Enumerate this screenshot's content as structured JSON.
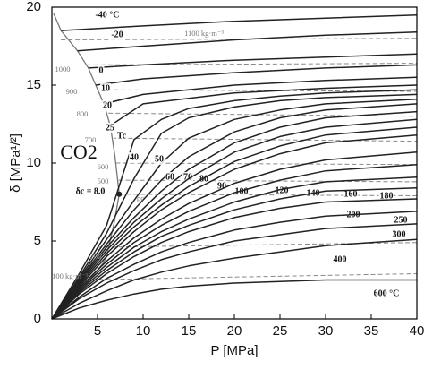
{
  "chart_data": {
    "type": "line",
    "xlabel": "P [MPa]",
    "ylabel": "δ [MPa¹/²]",
    "xlim": [
      0,
      40
    ],
    "ylim": [
      0,
      20
    ],
    "xticks": [
      5,
      10,
      15,
      20,
      25,
      30,
      35,
      40
    ],
    "yticks": [
      0,
      5,
      10,
      15,
      20
    ],
    "annotations": {
      "substance": "CO2",
      "critical": "δc = 8.0"
    },
    "critical_point": {
      "x": 7.38,
      "value": 8.0
    },
    "x": [
      0,
      3,
      6,
      9,
      12,
      15,
      20,
      25,
      30,
      40
    ],
    "saturation_curve": {
      "color": "#777777",
      "x": [
        0.2,
        1,
        2.8,
        4,
        4.8,
        5.7,
        6.4,
        6.9,
        7.38,
        6.8,
        5.9,
        3.6,
        1.7,
        0
      ],
      "values": [
        19.6,
        18.5,
        17.2,
        16.1,
        15.0,
        13.8,
        12.4,
        10.5,
        8.0,
        6.1,
        3.8,
        2.1,
        0.9,
        0
      ]
    },
    "series": [
      {
        "name": "-40 °C",
        "color": "#222222",
        "x": [
          1,
          10,
          20,
          30,
          40
        ],
        "values": [
          18.5,
          18.8,
          19.1,
          19.3,
          19.5
        ]
      },
      {
        "name": "-20",
        "color": "#222222",
        "x": [
          2.8,
          10,
          20,
          30,
          40
        ],
        "values": [
          17.2,
          17.5,
          17.9,
          18.2,
          18.4
        ]
      },
      {
        "name": "0",
        "color": "#222222",
        "x": [
          4,
          10,
          20,
          30,
          40
        ],
        "values": [
          16.1,
          16.3,
          16.6,
          16.8,
          17.0
        ]
      },
      {
        "name": "10",
        "color": "#222222",
        "x": [
          4.8,
          10,
          20,
          30,
          40
        ],
        "values": [
          15.0,
          15.4,
          15.8,
          16.1,
          16.3
        ]
      },
      {
        "name": "20",
        "color": "#222222",
        "x": [
          5.7,
          10,
          20,
          30,
          40
        ],
        "values": [
          13.8,
          14.4,
          15.0,
          15.3,
          15.5
        ]
      },
      {
        "name": "25",
        "color": "#222222",
        "x": [
          6.4,
          10,
          20,
          30,
          40
        ],
        "values": [
          12.4,
          13.8,
          14.5,
          14.8,
          15.0
        ]
      },
      {
        "name": "Tc",
        "color": "#222222",
        "values": [
          0,
          2.9,
          6.0,
          11.5,
          12.8,
          13.5,
          14.0,
          14.3,
          14.5,
          14.7
        ]
      },
      {
        "name": "40",
        "color": "#222222",
        "values": [
          0,
          2.7,
          5.5,
          9.0,
          11.9,
          12.9,
          13.6,
          14.0,
          14.2,
          14.4
        ]
      },
      {
        "name": "50",
        "color": "#222222",
        "values": [
          0,
          2.6,
          5.1,
          7.6,
          10.0,
          11.6,
          12.8,
          13.4,
          13.8,
          14.1
        ]
      },
      {
        "name": "60",
        "color": "#222222",
        "values": [
          0,
          2.5,
          4.8,
          7.0,
          8.9,
          10.4,
          12.0,
          12.9,
          13.4,
          13.8
        ]
      },
      {
        "name": "70",
        "color": "#222222",
        "values": [
          0,
          2.4,
          4.6,
          6.5,
          8.2,
          9.6,
          11.3,
          12.3,
          12.9,
          13.3
        ]
      },
      {
        "name": "80",
        "color": "#222222",
        "values": [
          0,
          2.3,
          4.4,
          6.2,
          7.7,
          9.0,
          10.7,
          11.7,
          12.3,
          12.8
        ]
      },
      {
        "name": "90",
        "color": "#222222",
        "values": [
          0,
          2.2,
          4.2,
          5.9,
          7.3,
          8.5,
          10.1,
          11.1,
          11.8,
          12.3
        ]
      },
      {
        "name": "100",
        "color": "#222222",
        "values": [
          0,
          2.1,
          4.0,
          5.6,
          7.0,
          8.1,
          9.6,
          10.6,
          11.3,
          11.8
        ]
      },
      {
        "name": "120",
        "color": "#222222",
        "values": [
          0,
          2.0,
          3.7,
          5.2,
          6.4,
          7.4,
          8.7,
          9.6,
          10.2,
          10.7
        ]
      },
      {
        "name": "140",
        "color": "#222222",
        "values": [
          0,
          1.9,
          3.5,
          4.9,
          6.0,
          6.9,
          8.1,
          8.9,
          9.5,
          9.9
        ]
      },
      {
        "name": "160",
        "color": "#222222",
        "values": [
          0,
          1.8,
          3.3,
          4.6,
          5.6,
          6.4,
          7.5,
          8.3,
          8.8,
          9.1
        ]
      },
      {
        "name": "180",
        "color": "#222222",
        "values": [
          0,
          1.7,
          3.1,
          4.3,
          5.3,
          6.0,
          7.0,
          7.7,
          8.2,
          8.4
        ]
      },
      {
        "name": "200",
        "color": "#222222",
        "values": [
          0,
          1.6,
          2.9,
          4.0,
          4.9,
          5.6,
          6.5,
          7.1,
          7.5,
          7.7
        ]
      },
      {
        "name": "250",
        "color": "#222222",
        "values": [
          0,
          1.4,
          2.6,
          3.5,
          4.3,
          4.9,
          5.7,
          6.2,
          6.6,
          6.9
        ]
      },
      {
        "name": "300",
        "color": "#222222",
        "values": [
          0,
          1.3,
          2.3,
          3.1,
          3.8,
          4.3,
          5.0,
          5.4,
          5.8,
          6.1
        ]
      },
      {
        "name": "400",
        "color": "#222222",
        "values": [
          0,
          1.0,
          1.8,
          2.5,
          3.0,
          3.4,
          3.9,
          4.3,
          4.7,
          5.1
        ]
      },
      {
        "name": "600 °C",
        "color": "#222222",
        "values": [
          0,
          0.7,
          1.2,
          1.6,
          1.9,
          2.1,
          2.3,
          2.4,
          2.5,
          2.5
        ]
      }
    ],
    "isochores": [
      {
        "name": "1100 kg·m⁻³",
        "color": "#888888",
        "x": [
          1,
          40
        ],
        "values": [
          17.9,
          18.0
        ]
      },
      {
        "name": "1000",
        "color": "#888888",
        "x": [
          3.8,
          40
        ],
        "values": [
          16.3,
          16.4
        ]
      },
      {
        "name": "900",
        "color": "#888888",
        "x": [
          5.2,
          40
        ],
        "values": [
          14.7,
          14.6
        ]
      },
      {
        "name": "800",
        "color": "#888888",
        "x": [
          6.2,
          40
        ],
        "values": [
          13.2,
          13.0
        ]
      },
      {
        "name": "700",
        "color": "#888888",
        "x": [
          6.8,
          40
        ],
        "values": [
          11.6,
          11.4
        ]
      },
      {
        "name": "600",
        "color": "#888888",
        "x": [
          7.0,
          40
        ],
        "values": [
          10.0,
          9.9
        ]
      },
      {
        "name": "500",
        "color": "#888888",
        "x": [
          7.3,
          40
        ],
        "values": [
          8.9,
          8.8
        ]
      },
      {
        "name": "ρc",
        "color": "#888888",
        "x": [
          7.38,
          40
        ],
        "values": [
          8.0,
          7.9
        ]
      },
      {
        "name": "200",
        "color": "#888888",
        "x": [
          5.0,
          40
        ],
        "values": [
          4.6,
          4.9
        ]
      },
      {
        "name": "100 kg·m⁻³",
        "color": "#888888",
        "x": [
          2.8,
          40
        ],
        "values": [
          2.5,
          2.9
        ]
      }
    ]
  }
}
